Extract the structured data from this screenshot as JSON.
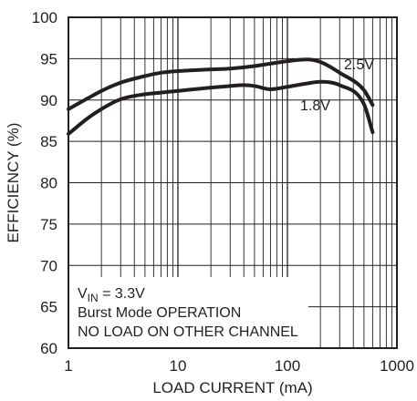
{
  "chart_data": {
    "type": "line",
    "xscale": "log",
    "xlabel": "LOAD CURRENT (mA)",
    "ylabel": "EFFICIENCY (%)",
    "xlim": [
      1,
      1000
    ],
    "ylim": [
      60,
      100
    ],
    "x_ticks": [
      1,
      10,
      100,
      1000
    ],
    "x_tick_labels": [
      "1",
      "10",
      "100",
      "1000"
    ],
    "y_ticks": [
      60,
      65,
      70,
      75,
      80,
      85,
      90,
      95,
      100
    ],
    "y_tick_labels": [
      "60",
      "65",
      "70",
      "75",
      "80",
      "85",
      "90",
      "95",
      "100"
    ],
    "grid": true,
    "series": [
      {
        "name": "2.5V",
        "x": [
          1,
          1.5,
          2,
          3,
          5,
          7,
          10,
          20,
          30,
          50,
          70,
          100,
          150,
          200,
          300,
          500,
          600
        ],
        "y": [
          88.9,
          90.2,
          91.1,
          92.1,
          92.9,
          93.3,
          93.5,
          93.7,
          93.8,
          94.1,
          94.4,
          94.7,
          94.9,
          94.6,
          93.3,
          91.2,
          89.4
        ]
      },
      {
        "name": "1.8V",
        "x": [
          1,
          1.5,
          2,
          3,
          5,
          7,
          10,
          20,
          30,
          40,
          50,
          70,
          100,
          150,
          200,
          300,
          500,
          600
        ],
        "y": [
          85.9,
          87.8,
          88.9,
          90.1,
          90.7,
          90.9,
          91.1,
          91.5,
          91.7,
          91.8,
          91.7,
          91.3,
          91.6,
          92.0,
          92.2,
          91.8,
          89.5,
          86.1
        ]
      }
    ],
    "annotations": [
      {
        "sub_base": "V",
        "sub_text": "IN",
        "text": " = 3.3V"
      },
      {
        "text": "Burst Mode OPERATION"
      },
      {
        "text": "NO LOAD ON OTHER CHANNEL"
      }
    ],
    "legend": "inline"
  }
}
